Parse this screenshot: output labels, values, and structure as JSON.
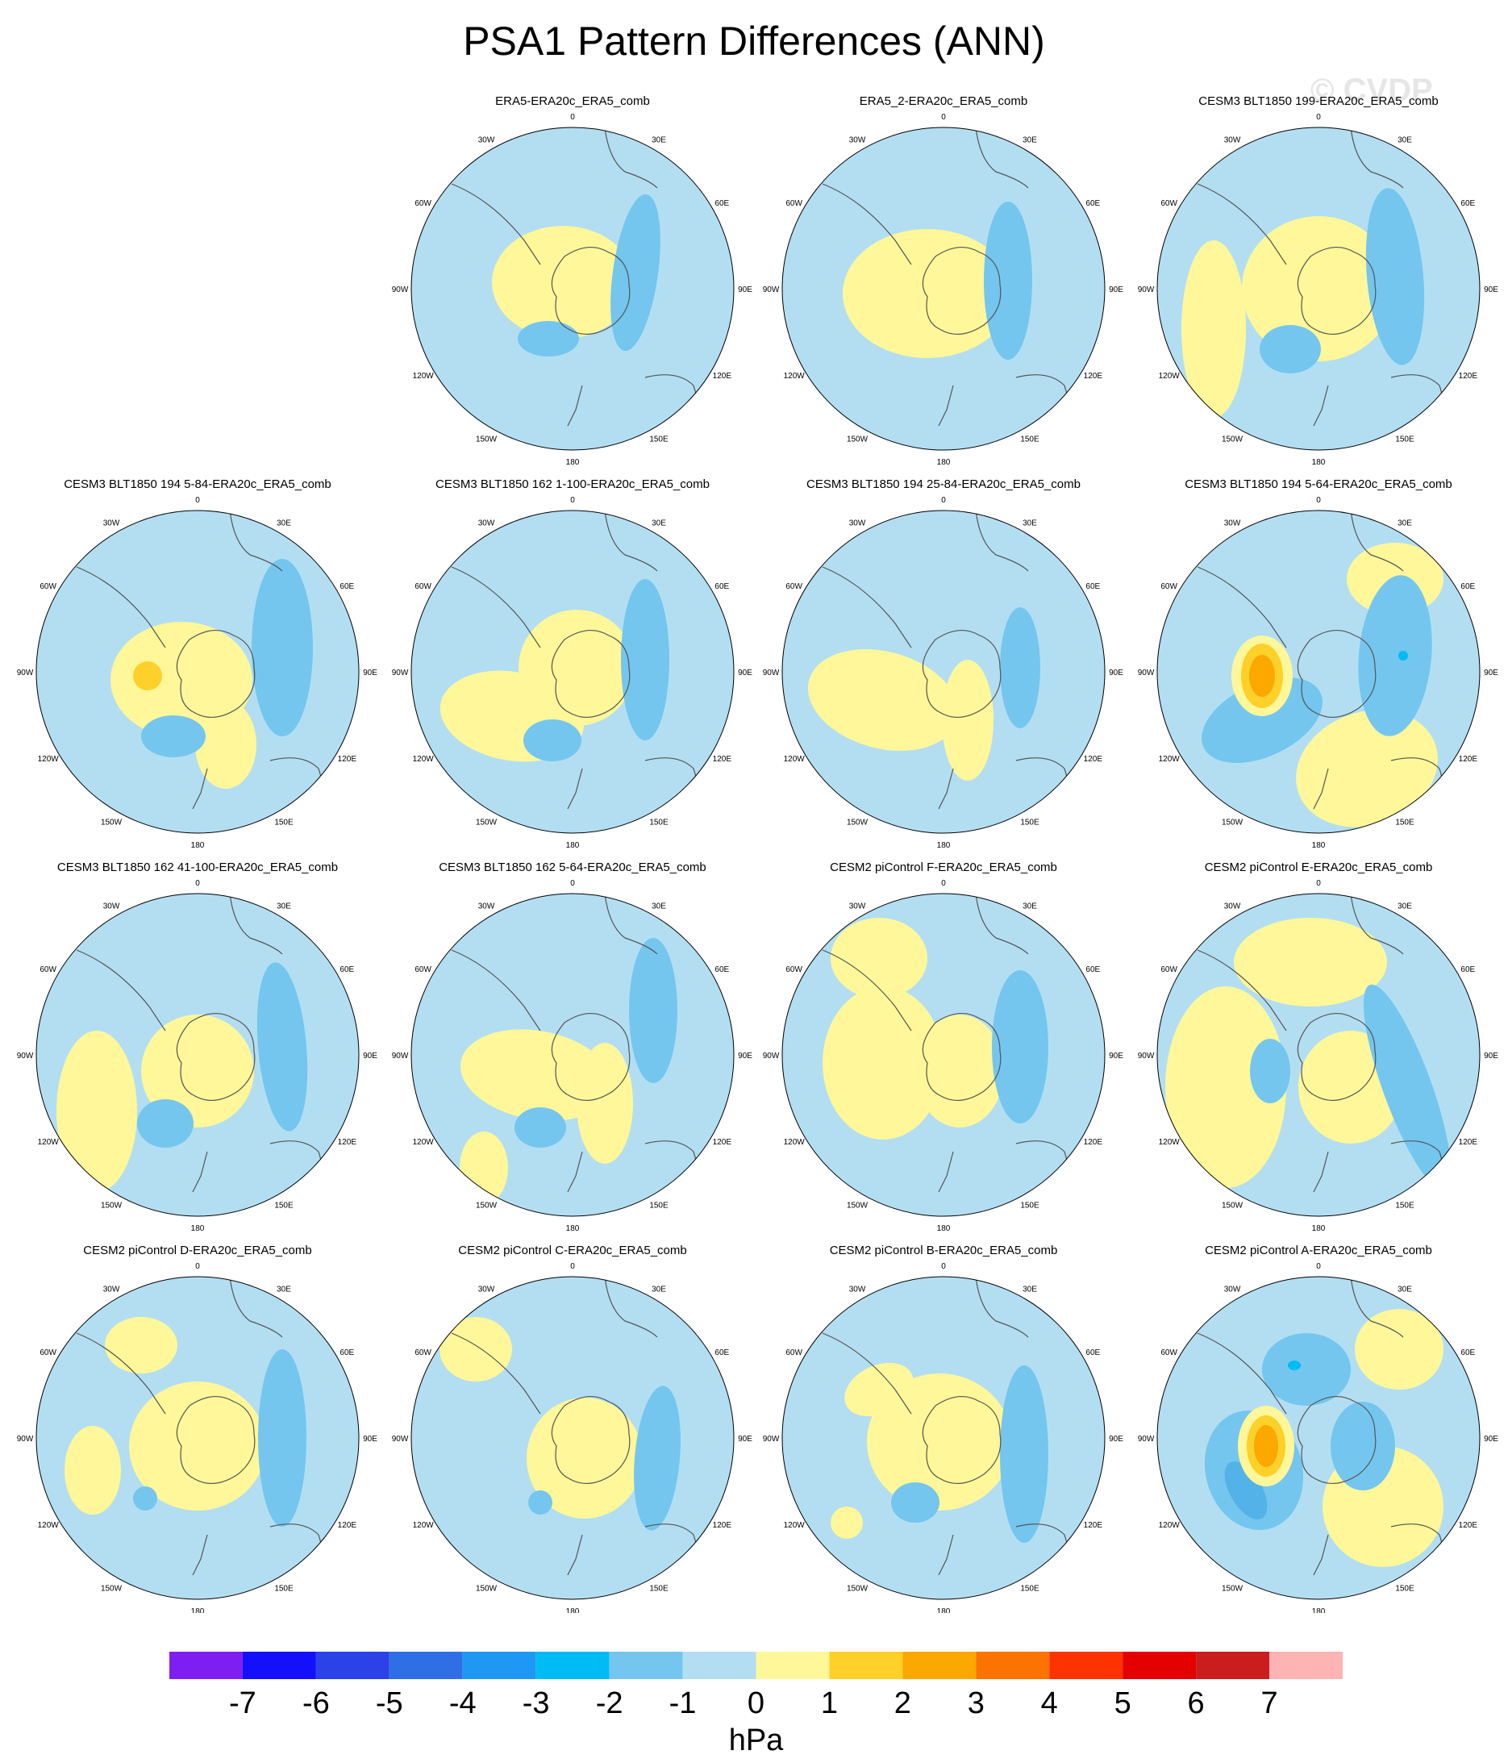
{
  "title": "PSA1 Pattern Differences (ANN)",
  "watermark": "© CVDP",
  "colors": {
    "ocean_bg": "#b3def2",
    "neg1": "#74c6ef",
    "neg2": "#53b3e8",
    "neg3": "#00bcf5",
    "pos1": "#fff799",
    "pos2": "#fdd02a",
    "pos3": "#fba800",
    "coast": "#555555"
  },
  "lon_labels": [
    "0",
    "30E",
    "60E",
    "90E",
    "120E",
    "150E",
    "180",
    "150W",
    "120W",
    "90W",
    "60W",
    "30W"
  ],
  "panels": [
    {
      "title": "ERA5-ERA20c_ERA5_comb",
      "row": 0,
      "col": 1,
      "blobs": [
        [
          "pos1",
          -12,
          -8,
          88,
          70,
          0
        ],
        [
          "neg1",
          78,
          -20,
          28,
          98,
          8
        ],
        [
          "neg1",
          -30,
          62,
          38,
          22,
          0
        ]
      ]
    },
    {
      "title": "ERA5_2-ERA20c_ERA5_comb",
      "row": 0,
      "col": 2,
      "blobs": [
        [
          "pos1",
          -20,
          6,
          105,
          80,
          0
        ],
        [
          "neg1",
          80,
          -10,
          30,
          98,
          0
        ]
      ]
    },
    {
      "title": "CESM3 BLT1850 199-ERA20c_ERA5_comb",
      "row": 0,
      "col": 3,
      "blobs": [
        [
          "pos1",
          -130,
          50,
          40,
          110,
          0
        ],
        [
          "pos1",
          0,
          0,
          95,
          90,
          0
        ],
        [
          "neg1",
          95,
          -15,
          35,
          110,
          -5
        ],
        [
          "neg1",
          -35,
          75,
          38,
          30,
          0
        ]
      ]
    },
    {
      "title": "CESM3 BLT1850 194 5-84-ERA20c_ERA5_comb",
      "row": 1,
      "col": 0,
      "blobs": [
        [
          "pos1",
          -20,
          10,
          88,
          72,
          0
        ],
        [
          "pos1",
          35,
          90,
          38,
          55,
          0
        ],
        [
          "pos2",
          -62,
          5,
          18,
          18,
          0
        ],
        [
          "neg1",
          105,
          -30,
          38,
          110,
          0
        ],
        [
          "neg1",
          -30,
          80,
          40,
          26,
          0
        ]
      ]
    },
    {
      "title": "CESM3 BLT1850 162 1-100-ERA20c_ERA5_comb",
      "row": 1,
      "col": 1,
      "blobs": [
        [
          "pos1",
          -75,
          55,
          90,
          55,
          10
        ],
        [
          "pos1",
          5,
          -5,
          72,
          72,
          0
        ],
        [
          "neg1",
          90,
          -15,
          30,
          100,
          0
        ],
        [
          "neg1",
          -25,
          85,
          36,
          26,
          0
        ]
      ]
    },
    {
      "title": "CESM3 BLT1850 194 25-84-ERA20c_ERA5_comb",
      "row": 1,
      "col": 2,
      "blobs": [
        [
          "pos1",
          -75,
          35,
          95,
          60,
          15
        ],
        [
          "pos1",
          30,
          60,
          32,
          75,
          0
        ],
        [
          "neg1",
          95,
          -5,
          25,
          75,
          0
        ]
      ]
    },
    {
      "title": "CESM3 BLT1850 194 5-64-ERA20c_ERA5_comb",
      "row": 1,
      "col": 3,
      "blobs": [
        [
          "pos1",
          60,
          120,
          90,
          70,
          -20
        ],
        [
          "pos1",
          95,
          -115,
          60,
          45,
          0
        ],
        [
          "neg1",
          95,
          -20,
          45,
          100,
          5
        ],
        [
          "neg1",
          -70,
          60,
          80,
          45,
          -25
        ],
        [
          "pos1",
          -70,
          5,
          38,
          50,
          0
        ],
        [
          "pos2",
          -70,
          5,
          26,
          40,
          0
        ],
        [
          "pos3",
          -70,
          5,
          16,
          26,
          0
        ],
        [
          "neg3",
          105,
          -20,
          6,
          6,
          0
        ]
      ]
    },
    {
      "title": "CESM3 BLT1850 162 41-100-ERA20c_ERA5_comb",
      "row": 2,
      "col": 0,
      "blobs": [
        [
          "pos1",
          -125,
          70,
          50,
          100,
          0
        ],
        [
          "pos1",
          0,
          20,
          70,
          70,
          0
        ],
        [
          "neg1",
          105,
          -10,
          30,
          105,
          -5
        ],
        [
          "neg1",
          -40,
          85,
          35,
          30,
          0
        ]
      ]
    },
    {
      "title": "CESM3 BLT1850 162 5-64-ERA20c_ERA5_comb",
      "row": 2,
      "col": 1,
      "blobs": [
        [
          "pos1",
          -45,
          25,
          95,
          55,
          10
        ],
        [
          "pos1",
          40,
          60,
          35,
          75,
          0
        ],
        [
          "pos1",
          -110,
          140,
          30,
          45,
          0
        ],
        [
          "neg1",
          100,
          -55,
          30,
          90,
          0
        ],
        [
          "neg1",
          -40,
          90,
          32,
          25,
          0
        ]
      ]
    },
    {
      "title": "CESM2 piControl F-ERA20c_ERA5_comb",
      "row": 2,
      "col": 2,
      "blobs": [
        [
          "pos1",
          -75,
          10,
          75,
          95,
          0
        ],
        [
          "pos1",
          -80,
          -120,
          60,
          50,
          0
        ],
        [
          "pos1",
          20,
          20,
          55,
          70,
          0
        ],
        [
          "neg1",
          95,
          -10,
          35,
          95,
          0
        ]
      ]
    },
    {
      "title": "CESM2 piControl E-ERA20c_ERA5_comb",
      "row": 2,
      "col": 3,
      "blobs": [
        [
          "pos1",
          -115,
          40,
          75,
          125,
          0
        ],
        [
          "pos1",
          -10,
          -115,
          95,
          55,
          0
        ],
        [
          "pos1",
          40,
          40,
          65,
          70,
          0
        ],
        [
          "neg1",
          110,
          40,
          30,
          135,
          -20
        ],
        [
          "neg1",
          -60,
          20,
          25,
          40,
          0
        ]
      ]
    },
    {
      "title": "CESM2 piControl D-ERA20c_ERA5_comb",
      "row": 3,
      "col": 0,
      "blobs": [
        [
          "pos1",
          0,
          10,
          85,
          80,
          0
        ],
        [
          "pos1",
          -130,
          40,
          35,
          55,
          0
        ],
        [
          "pos1",
          -70,
          -115,
          45,
          35,
          0
        ],
        [
          "neg1",
          105,
          0,
          30,
          110,
          0
        ],
        [
          "neg1",
          -65,
          75,
          15,
          15,
          0
        ]
      ]
    },
    {
      "title": "CESM2 piControl C-ERA20c_ERA5_comb",
      "row": 3,
      "col": 1,
      "blobs": [
        [
          "pos1",
          15,
          25,
          72,
          75,
          0
        ],
        [
          "pos1",
          -120,
          -110,
          45,
          40,
          0
        ],
        [
          "neg1",
          105,
          25,
          28,
          90,
          5
        ],
        [
          "neg1",
          -40,
          80,
          15,
          15,
          0
        ]
      ]
    },
    {
      "title": "CESM2 piControl B-ERA20c_ERA5_comb",
      "row": 3,
      "col": 2,
      "blobs": [
        [
          "pos1",
          -5,
          5,
          90,
          85,
          0
        ],
        [
          "pos1",
          -80,
          -60,
          45,
          30,
          -25
        ],
        [
          "pos1",
          -120,
          105,
          20,
          20,
          0
        ],
        [
          "neg1",
          100,
          20,
          30,
          110,
          0
        ],
        [
          "neg1",
          -35,
          80,
          30,
          25,
          0
        ]
      ]
    },
    {
      "title": "CESM2 piControl A-ERA20c_ERA5_comb",
      "row": 3,
      "col": 3,
      "blobs": [
        [
          "pos1",
          80,
          85,
          75,
          75,
          -20
        ],
        [
          "pos1",
          100,
          -110,
          55,
          50,
          0
        ],
        [
          "neg1",
          -15,
          -85,
          55,
          45,
          0
        ],
        [
          "neg1",
          -80,
          40,
          60,
          75,
          -15
        ],
        [
          "neg1",
          55,
          10,
          40,
          55,
          0
        ],
        [
          "neg2",
          -90,
          65,
          20,
          40,
          -30
        ],
        [
          "pos1",
          -65,
          10,
          35,
          50,
          0
        ],
        [
          "pos2",
          -65,
          10,
          24,
          38,
          0
        ],
        [
          "pos3",
          -65,
          10,
          15,
          26,
          0
        ],
        [
          "neg3",
          -30,
          -90,
          8,
          6,
          0
        ]
      ]
    }
  ],
  "colorbar": {
    "ticks": [
      "-7",
      "-6",
      "-5",
      "-4",
      "-3",
      "-2",
      "-1",
      "0",
      "1",
      "2",
      "3",
      "4",
      "5",
      "6",
      "7"
    ],
    "colors": [
      "#7f1ef0",
      "#1410fc",
      "#2a42e8",
      "#2e6fe6",
      "#1e98f2",
      "#00bcf5",
      "#74c6ef",
      "#b3def2",
      "#fff799",
      "#fdd02a",
      "#fba800",
      "#fb7300",
      "#fc3200",
      "#e40000",
      "#ca1d1d",
      "#ffb4b4"
    ],
    "unit": "hPa"
  }
}
